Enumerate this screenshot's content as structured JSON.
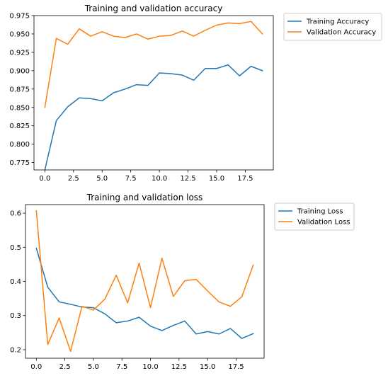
{
  "chart_data": [
    {
      "type": "line",
      "title": "Training and validation accuracy",
      "xlabel": "",
      "ylabel": "",
      "xlim": [
        -0.95,
        19.95
      ],
      "ylim": [
        0.765,
        0.975
      ],
      "xticks": [
        0,
        2.5,
        5,
        7.5,
        10,
        12.5,
        15,
        17.5
      ],
      "xtick_labels": [
        "0.0",
        "2.5",
        "5.0",
        "7.5",
        "10.0",
        "12.5",
        "15.0",
        "17.5"
      ],
      "yticks": [
        0.775,
        0.8,
        0.825,
        0.85,
        0.875,
        0.9,
        0.925,
        0.95,
        0.975
      ],
      "ytick_labels": [
        "0.775",
        "0.800",
        "0.825",
        "0.850",
        "0.875",
        "0.900",
        "0.925",
        "0.950",
        "0.975"
      ],
      "grid": false,
      "legend_position": "outside-top-right",
      "x": [
        0,
        1,
        2,
        3,
        4,
        5,
        6,
        7,
        8,
        9,
        10,
        11,
        12,
        13,
        14,
        15,
        16,
        17,
        18,
        19
      ],
      "series": [
        {
          "name": "Training Accuracy",
          "color": "#1f77b4",
          "values": [
            0.765,
            0.832,
            0.851,
            0.863,
            0.862,
            0.859,
            0.87,
            0.875,
            0.881,
            0.88,
            0.897,
            0.896,
            0.894,
            0.887,
            0.903,
            0.903,
            0.908,
            0.893,
            0.906,
            0.9
          ]
        },
        {
          "name": "Validation Accuracy",
          "color": "#ff7f0e",
          "values": [
            0.85,
            0.944,
            0.936,
            0.957,
            0.947,
            0.953,
            0.947,
            0.945,
            0.95,
            0.943,
            0.947,
            0.948,
            0.954,
            0.947,
            0.955,
            0.962,
            0.965,
            0.964,
            0.967,
            0.95
          ]
        }
      ]
    },
    {
      "type": "line",
      "title": "Training and validation loss",
      "xlabel": "",
      "ylabel": "",
      "xlim": [
        -0.95,
        19.95
      ],
      "ylim": [
        0.175,
        0.625
      ],
      "xticks": [
        0,
        2.5,
        5,
        7.5,
        10,
        12.5,
        15,
        17.5
      ],
      "xtick_labels": [
        "0.0",
        "2.5",
        "5.0",
        "7.5",
        "10.0",
        "12.5",
        "15.0",
        "17.5"
      ],
      "yticks": [
        0.2,
        0.3,
        0.4,
        0.5,
        0.6
      ],
      "ytick_labels": [
        "0.2",
        "0.3",
        "0.4",
        "0.5",
        "0.6"
      ],
      "grid": false,
      "legend_position": "outside-top-right",
      "x": [
        0,
        1,
        2,
        3,
        4,
        5,
        6,
        7,
        8,
        9,
        10,
        11,
        12,
        13,
        14,
        15,
        16,
        17,
        18,
        19
      ],
      "series": [
        {
          "name": "Training Loss",
          "color": "#1f77b4",
          "values": [
            0.497,
            0.383,
            0.34,
            0.333,
            0.325,
            0.323,
            0.305,
            0.279,
            0.284,
            0.295,
            0.269,
            0.256,
            0.271,
            0.284,
            0.246,
            0.253,
            0.246,
            0.262,
            0.233,
            0.247
          ]
        },
        {
          "name": "Validation Loss",
          "color": "#ff7f0e",
          "values": [
            0.607,
            0.215,
            0.293,
            0.195,
            0.327,
            0.316,
            0.348,
            0.418,
            0.337,
            0.454,
            0.323,
            0.468,
            0.356,
            0.402,
            0.406,
            0.372,
            0.34,
            0.327,
            0.355,
            0.448
          ]
        }
      ]
    }
  ]
}
